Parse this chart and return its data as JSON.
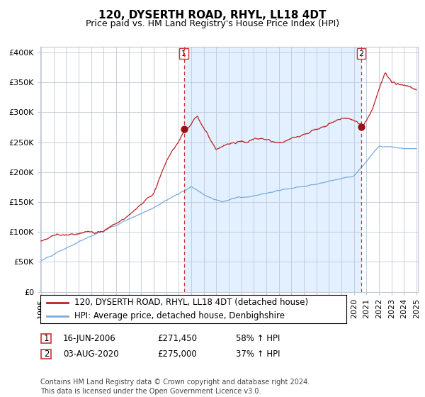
{
  "title": "120, DYSERTH ROAD, RHYL, LL18 4DT",
  "subtitle": "Price paid vs. HM Land Registry's House Price Index (HPI)",
  "ylabel_ticks": [
    "£0",
    "£50K",
    "£100K",
    "£150K",
    "£200K",
    "£250K",
    "£300K",
    "£350K",
    "£400K"
  ],
  "ytick_vals": [
    0,
    50000,
    100000,
    150000,
    200000,
    250000,
    300000,
    350000,
    400000
  ],
  "ylim": [
    0,
    410000
  ],
  "sale1_year": 2006,
  "sale1_month": 6,
  "sale1_date": "16-JUN-2006",
  "sale1_price": 271450,
  "sale2_year": 2020,
  "sale2_month": 8,
  "sale2_date": "03-AUG-2020",
  "sale2_price": 275000,
  "sale1_pct": "58% ↑ HPI",
  "sale2_pct": "37% ↑ HPI",
  "legend_line1": "120, DYSERTH ROAD, RHYL, LL18 4DT (detached house)",
  "legend_line2": "HPI: Average price, detached house, Denbighshire",
  "footer": "Contains HM Land Registry data © Crown copyright and database right 2024.\nThis data is licensed under the Open Government Licence v3.0.",
  "hpi_color": "#7aaadd",
  "price_color": "#bb2222",
  "dot_color": "#991111",
  "vline_color": "#cc3333",
  "bg_fill_color": "#ddeeff",
  "grid_color": "#c0c8d8",
  "chart_bg": "#ffffff",
  "title_fontsize": 11,
  "subtitle_fontsize": 9,
  "tick_fontsize": 8,
  "legend_fontsize": 8.5,
  "annotation_fontsize": 8.5,
  "footer_fontsize": 7
}
